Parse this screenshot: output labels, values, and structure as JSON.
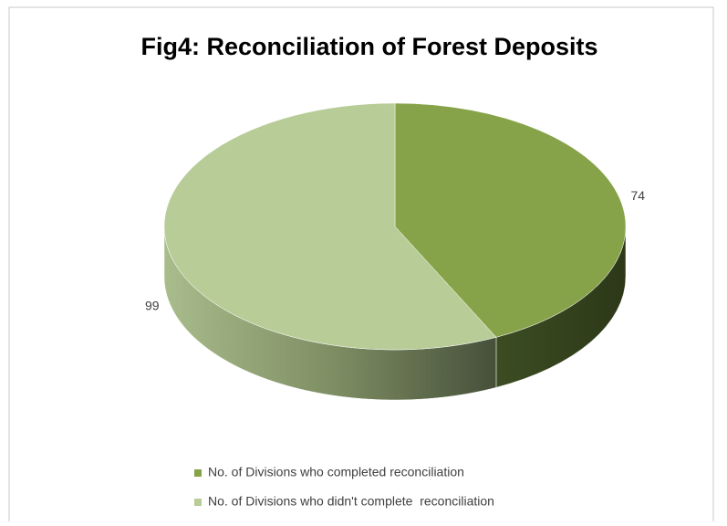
{
  "chart_data": {
    "type": "pie",
    "title": "Fig4: Reconciliation of Forest Deposits",
    "categories": [
      "No. of Divisions who completed reconciliation",
      "No. of Divisions who didn't complete  reconciliation"
    ],
    "values": [
      74,
      99
    ],
    "colors": [
      "#86a34a",
      "#b7cc96"
    ]
  }
}
